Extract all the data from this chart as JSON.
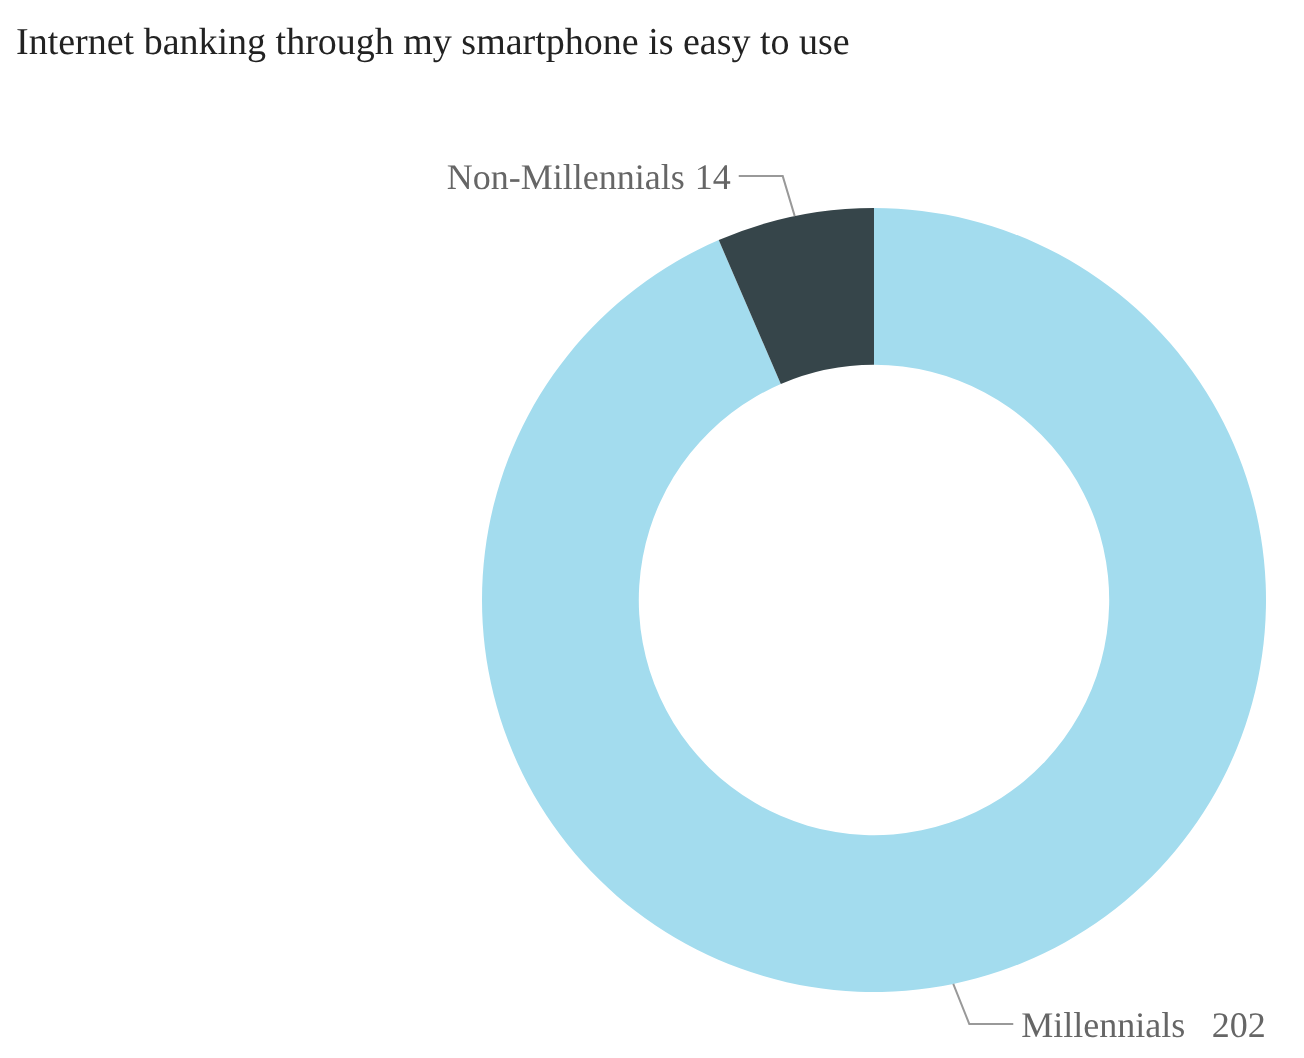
{
  "chart_data": {
    "type": "donut",
    "title": "Internet banking through my smartphone is easy to use",
    "categories": [
      "Millennials",
      "Non-Millennials"
    ],
    "values": [
      202,
      14
    ],
    "colors": [
      "#a3dcee",
      "#36454a"
    ],
    "data_labels": true
  }
}
